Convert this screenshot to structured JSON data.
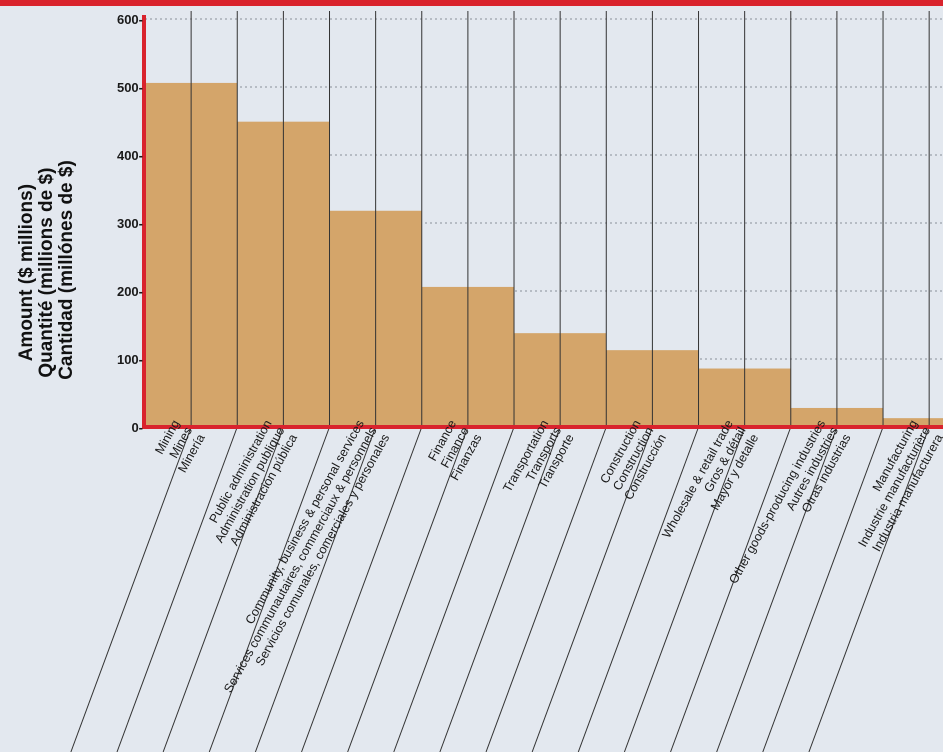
{
  "chart_data": {
    "type": "bar",
    "ylabel_lines": [
      "Amount  ($ millions)",
      "Quantité (millions de $)",
      "Cantidad (millónes de $)"
    ],
    "ylim": [
      0,
      600
    ],
    "yticks": [
      "0-",
      "100-",
      "200-",
      "300-",
      "400-",
      "500-",
      "600-"
    ],
    "categories": [
      {
        "lines": [
          "Mining",
          "Mines",
          "Minería"
        ]
      },
      {
        "lines": [
          "Public administration",
          "Administration publique",
          "Administración pública"
        ]
      },
      {
        "lines": [
          "Community, business & personal services",
          "Services communautaires, commerciaux & personnels",
          "Servicios comunales, comerciales y personales"
        ]
      },
      {
        "lines": [
          "Finance",
          "Finance",
          "Finanzas"
        ]
      },
      {
        "lines": [
          "Transportation",
          "Transports",
          "Transporte"
        ]
      },
      {
        "lines": [
          "Construction",
          "Construction",
          "Construcción"
        ]
      },
      {
        "lines": [
          "Wholesale & retail trade",
          "Gros & détail",
          "Mayor y detalle"
        ]
      },
      {
        "lines": [
          "Other goods-producing industries",
          "Autres industries",
          "Otras industrias"
        ]
      },
      {
        "lines": [
          "Manufacturing",
          "Industrie manufacturière",
          "Industria manufacturera"
        ]
      }
    ],
    "values": [
      506,
      449,
      318,
      206,
      138,
      113,
      86,
      28,
      13
    ],
    "grid": true,
    "colors": {
      "bar": "#d4a56a",
      "axis": "#d9232d",
      "background": "#e3e8ef",
      "gridline": "#8a8f98",
      "divider": "#333333"
    }
  }
}
